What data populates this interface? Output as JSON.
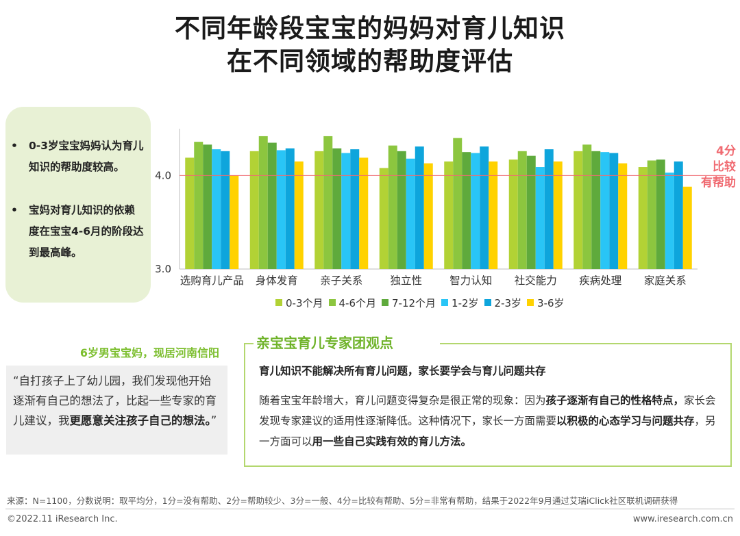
{
  "title": {
    "line1": "不同年龄段宝宝的妈妈对育儿知识",
    "line2": "在不同领域的帮助度评估"
  },
  "left_panel": {
    "bullet_symbol": "•",
    "bullet1": "0-3岁宝宝妈妈认为育儿知识的帮助度较高。",
    "bullet2": "宝妈对育儿知识的依赖度在宝宝4-6月的阶段达到最高峰。"
  },
  "annotation": {
    "line1": "4分",
    "line2": "比较",
    "line3": "有帮助"
  },
  "chart_data": {
    "type": "bar",
    "categories": [
      "选购育儿产品",
      "身体发育",
      "亲子关系",
      "独立性",
      "智力认知",
      "社交能力",
      "疾病处理",
      "家庭关系"
    ],
    "series": [
      {
        "name": "0-3个月",
        "color": "#b2d235",
        "values": [
          4.19,
          4.26,
          4.26,
          4.08,
          4.15,
          4.17,
          4.26,
          4.09
        ]
      },
      {
        "name": "4-6个月",
        "color": "#8cc63f",
        "values": [
          4.36,
          4.42,
          4.42,
          4.32,
          4.4,
          4.26,
          4.33,
          4.16
        ]
      },
      {
        "name": "7-12个月",
        "color": "#5faa3c",
        "values": [
          4.33,
          4.35,
          4.29,
          4.26,
          4.25,
          4.21,
          4.26,
          4.17
        ]
      },
      {
        "name": "1-2岁",
        "color": "#29c5f6",
        "values": [
          4.28,
          4.27,
          4.24,
          4.18,
          4.24,
          4.09,
          4.25,
          4.03
        ]
      },
      {
        "name": "2-3岁",
        "color": "#0ea5dc",
        "values": [
          4.26,
          4.29,
          4.28,
          4.31,
          4.31,
          4.28,
          4.24,
          4.15
        ]
      },
      {
        "name": "3-6岁",
        "color": "#ffd200",
        "values": [
          4.0,
          4.15,
          4.19,
          4.13,
          4.15,
          4.15,
          4.13,
          3.88
        ]
      }
    ],
    "yticks": [
      "3.0",
      "4.0"
    ],
    "ylim": [
      3.0,
      4.5
    ],
    "reference_line": 4.0,
    "reference_color": "#f06b72",
    "grid": false,
    "legend_position": "bottom"
  },
  "quote": {
    "author": "6岁男宝宝妈，现居河南信阳",
    "text_normal": "“自打孩子上了幼儿园，我们发现他开始逐渐有自己的想法了，比起一些专家的育儿建议，我",
    "text_bold": "更愿意关注孩子自己的想法。",
    "text_end": "”"
  },
  "expert": {
    "title": "亲宝宝育儿专家团观点",
    "headline": "育儿知识不能解决所有育儿问题，家长要学会与育儿问题共存",
    "p1": "随着宝宝年龄增大，育儿问题变得复杂是很正常的现象：因为",
    "b1": "孩子逐渐有自己的性格特点，",
    "p2": "家长会发现专家建议的适用性逐渐降低。这种情况下，家长一方面需要",
    "b2": "以积极的心态学习与问题共存",
    "p3": "，另一方面可以",
    "b3": "用一些自己实践有效的育儿方法。"
  },
  "source": "来源：N=1100，分数说明：取平均分，1分=没有帮助、2分=帮助较少、3分=一般、4分=比较有帮助、5分=非常有帮助，结果于2022年9月通过艾瑞iClick社区联机调研获得",
  "footer": {
    "copyright": "©2022.11 iResearch Inc.",
    "website": "www.iresearch.com.cn"
  }
}
